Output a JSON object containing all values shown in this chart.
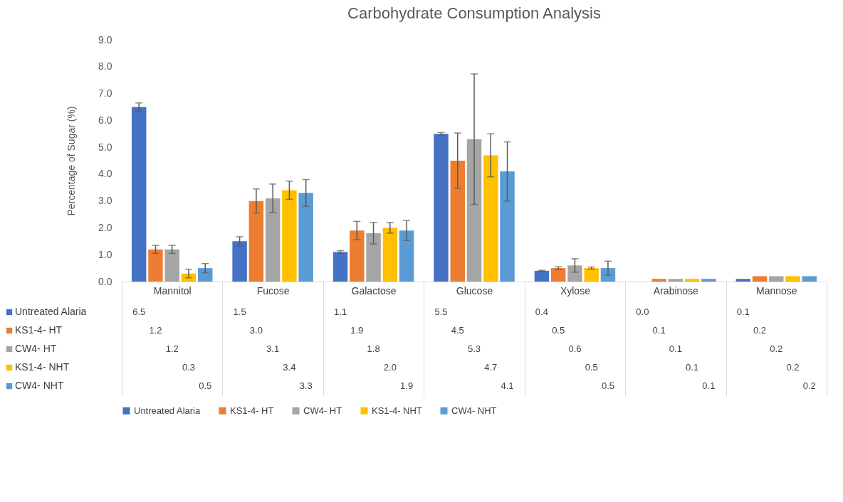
{
  "chart_data": {
    "type": "bar",
    "title": "Carbohydrate Consumption Analysis",
    "ylabel": "Percentage of Sugar (%)",
    "categories": [
      "Mannitol",
      "Fucose",
      "Galactose",
      "Glucose",
      "Xylose",
      "Arabinose",
      "Mannose"
    ],
    "series": [
      {
        "name": "Untreated Alaria",
        "color": "#4472c4",
        "values": [
          6.5,
          1.5,
          1.1,
          5.5,
          0.4,
          0.0,
          0.1
        ],
        "errors": [
          0.15,
          0.17,
          0.05,
          0.05,
          0.02,
          null,
          null
        ],
        "value_labels": [
          "6.5",
          "1.5",
          "1.1",
          "5.5",
          "0.4",
          "0.0",
          "0.1"
        ]
      },
      {
        "name": "KS1-4- HT",
        "color": "#ed7d31",
        "values": [
          1.2,
          3.0,
          1.9,
          4.5,
          0.5,
          0.1,
          0.2
        ],
        "errors": [
          0.15,
          0.45,
          0.34,
          1.03,
          0.05,
          null,
          null
        ],
        "value_labels": [
          "1.2",
          "3.0",
          "1.9",
          "4.5",
          "0.5",
          "0.1",
          "0.2"
        ]
      },
      {
        "name": "CW4- HT",
        "color": "#a5a5a5",
        "values": [
          1.2,
          3.1,
          1.8,
          5.3,
          0.6,
          0.1,
          0.2
        ],
        "errors": [
          0.15,
          0.53,
          0.4,
          2.43,
          0.25,
          null,
          null
        ],
        "value_labels": [
          "1.2",
          "3.1",
          "1.8",
          "5.3",
          "0.6",
          "0.1",
          "0.2"
        ]
      },
      {
        "name": "KS1-4- NHT",
        "color": "#ffc000",
        "values": [
          0.3,
          3.4,
          2.0,
          4.7,
          0.5,
          0.1,
          0.2
        ],
        "errors": [
          0.16,
          0.34,
          0.2,
          0.8,
          0.04,
          null,
          null
        ],
        "value_labels": [
          "0.3",
          "3.4",
          "2.0",
          "4.7",
          "0.5",
          "0.1",
          "0.2"
        ]
      },
      {
        "name": "CW4- NHT",
        "color": "#5b9bd5",
        "values": [
          0.5,
          3.3,
          1.9,
          4.1,
          0.5,
          0.1,
          0.2
        ],
        "errors": [
          0.17,
          0.5,
          0.37,
          1.1,
          0.26,
          null,
          null
        ],
        "value_labels": [
          "0.5",
          "3.3",
          "1.9",
          "4.1",
          "0.5",
          "0.1",
          "0.2"
        ]
      }
    ],
    "ylim": [
      0,
      9
    ],
    "yticks": [
      {
        "value": 0,
        "label": "0.0"
      },
      {
        "value": 1,
        "label": "1.0"
      },
      {
        "value": 2,
        "label": "2.0"
      },
      {
        "value": 3,
        "label": "3.0"
      },
      {
        "value": 4,
        "label": "4.0"
      },
      {
        "value": 5,
        "label": "5.0"
      },
      {
        "value": 6,
        "label": "6.0"
      },
      {
        "value": 7,
        "label": "7.0"
      },
      {
        "value": 8,
        "label": "8.0"
      },
      {
        "value": 9,
        "label": "9.0"
      }
    ],
    "legend": "bottom"
  }
}
